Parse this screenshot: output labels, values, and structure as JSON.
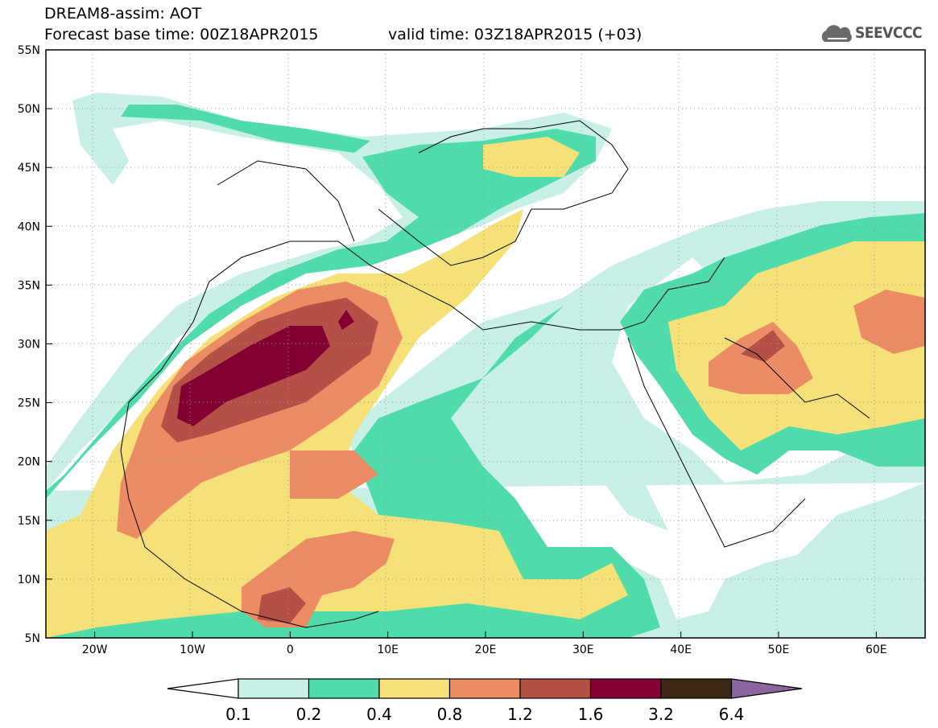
{
  "title": {
    "line1": "DREAM8-assim: AOT",
    "base": "Forecast base time: 00Z18APR2015",
    "valid": "valid time: 03Z18APR2015 (+03)"
  },
  "logo": {
    "text": "SEEVCCC",
    "icon": "cloud-icon"
  },
  "map_data": {
    "lon_ticks": [
      "20W",
      "10W",
      "0",
      "10E",
      "20E",
      "30E",
      "40E",
      "50E",
      "60E"
    ],
    "lat_ticks": [
      "55N",
      "50N",
      "45N",
      "40N",
      "35N",
      "30N",
      "25N",
      "20N",
      "15N",
      "10N",
      "5N"
    ],
    "lon_range": [
      -25,
      65
    ],
    "lat_range": [
      5,
      55
    ],
    "grid": "dotted"
  },
  "colorbar": {
    "labels": [
      "0.1",
      "0.2",
      "0.4",
      "0.8",
      "1.2",
      "1.6",
      "3.2",
      "6.4"
    ],
    "colors": [
      "#ffffff",
      "#c8f0e6",
      "#50dcaa",
      "#f5e178",
      "#eb8c64",
      "#b45046",
      "#820032",
      "#3c2814",
      "#8c64a0"
    ]
  },
  "palette": {
    "c01": "#c8f0e6",
    "c02": "#50dcaa",
    "c04": "#f5e178",
    "c08": "#eb8c64",
    "c12": "#b45046",
    "c16": "#820032"
  }
}
